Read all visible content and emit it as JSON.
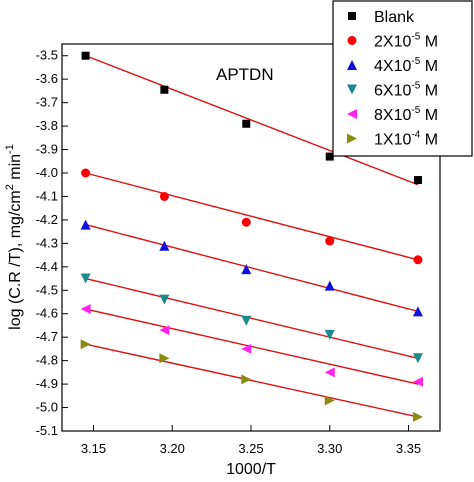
{
  "chart_data": {
    "type": "scatter",
    "annotation": "APTDN",
    "xlabel": "1000/T",
    "ylabel_main": "log (C.R /T), mg/cm",
    "ylabel_sup": "2",
    "ylabel_tail": " min",
    "ylabel_sup2": "-1",
    "xlim": [
      3.13,
      3.37
    ],
    "ylim": [
      -5.1,
      -3.45
    ],
    "x_ticks": [
      "3.15",
      "3.20",
      "3.25",
      "3.30",
      "3.35"
    ],
    "y_ticks": [
      "-3.5",
      "-3.6",
      "-3.7",
      "-3.8",
      "-3.9",
      "-4.0",
      "-4.1",
      "-4.2",
      "-4.3",
      "-4.4",
      "-4.5",
      "-4.6",
      "-4.7",
      "-4.8",
      "-4.9",
      "-5.0",
      "-5.1"
    ],
    "x": [
      3.145,
      3.195,
      3.247,
      3.3,
      3.356
    ],
    "fit_line_color": "#e01010",
    "series": [
      {
        "name": "Blank",
        "name_base": "Blank",
        "name_sup": "",
        "name_tail": "",
        "marker": "square",
        "color": "#000000",
        "values": [
          -3.5,
          -3.645,
          -3.79,
          -3.93,
          -4.03
        ],
        "fit": [
          -3.5,
          -4.05
        ]
      },
      {
        "name": "2X10-5 M",
        "name_base": "2X10",
        "name_sup": "-5",
        "name_tail": " M",
        "marker": "circle",
        "color": "#ff0000",
        "values": [
          -4.0,
          -4.1,
          -4.21,
          -4.29,
          -4.37
        ],
        "fit": [
          -4.0,
          -4.37
        ]
      },
      {
        "name": "4X10-5 M",
        "name_base": "4X10",
        "name_sup": "-5",
        "name_tail": " M",
        "marker": "triangle-up",
        "color": "#1010dd",
        "values": [
          -4.22,
          -4.31,
          -4.41,
          -4.48,
          -4.59
        ],
        "fit": [
          -4.22,
          -4.59
        ]
      },
      {
        "name": "6X10-5 M",
        "name_base": "6X10",
        "name_sup": "-5",
        "name_tail": " M",
        "marker": "triangle-down",
        "color": "#1a8a8a",
        "values": [
          -4.45,
          -4.54,
          -4.63,
          -4.69,
          -4.79
        ],
        "fit": [
          -4.45,
          -4.79
        ]
      },
      {
        "name": "8X10-5 M",
        "name_base": "8X10",
        "name_sup": "-5",
        "name_tail": " M",
        "marker": "triangle-left",
        "color": "#ff22ee",
        "values": [
          -4.58,
          -4.67,
          -4.75,
          -4.85,
          -4.89
        ],
        "fit": [
          -4.58,
          -4.9
        ]
      },
      {
        "name": "1X10-4 M",
        "name_base": "1X10",
        "name_sup": "-4",
        "name_tail": " M",
        "marker": "triangle-right",
        "color": "#8a8a10",
        "values": [
          -4.73,
          -4.79,
          -4.88,
          -4.97,
          -5.04
        ],
        "fit": [
          -4.73,
          -5.04
        ]
      }
    ]
  }
}
